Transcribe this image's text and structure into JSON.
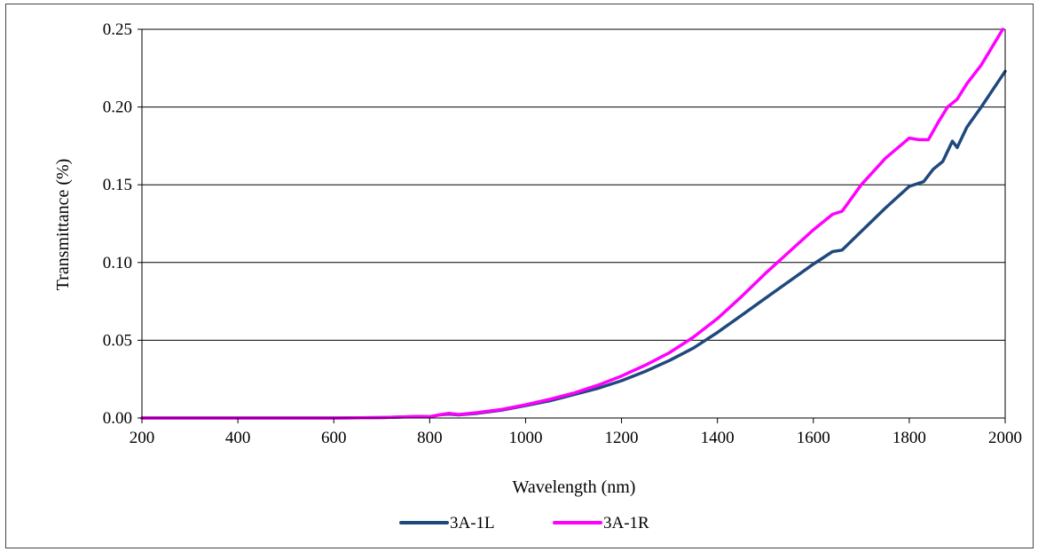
{
  "chart_data": {
    "type": "line",
    "title": "",
    "xlabel": "Wavelength (nm)",
    "ylabel": "Transmittance (%)",
    "xlim": [
      200,
      2000
    ],
    "ylim": [
      0,
      0.25
    ],
    "x_ticks": [
      "200",
      "400",
      "600",
      "800",
      "1000",
      "1200",
      "1400",
      "1600",
      "1800",
      "2000"
    ],
    "y_ticks": [
      "0.00",
      "0.05",
      "0.10",
      "0.15",
      "0.20",
      "0.25"
    ],
    "grid": "horizontal",
    "legend_position": "bottom",
    "series": [
      {
        "name": "3A-1L",
        "color": "#1f497d",
        "x": [
          200,
          400,
          600,
          700,
          780,
          800,
          820,
          840,
          860,
          900,
          950,
          1000,
          1050,
          1100,
          1150,
          1200,
          1250,
          1300,
          1350,
          1400,
          1450,
          1500,
          1550,
          1600,
          1640,
          1660,
          1700,
          1750,
          1800,
          1830,
          1850,
          1870,
          1890,
          1900,
          1920,
          1950,
          2000
        ],
        "y": [
          0.0,
          0.0,
          0.0,
          0.0003,
          0.001,
          0.0008,
          0.002,
          0.0025,
          0.002,
          0.003,
          0.005,
          0.008,
          0.011,
          0.015,
          0.019,
          0.024,
          0.03,
          0.037,
          0.045,
          0.055,
          0.066,
          0.077,
          0.088,
          0.099,
          0.107,
          0.108,
          0.12,
          0.135,
          0.149,
          0.152,
          0.16,
          0.165,
          0.178,
          0.174,
          0.187,
          0.2,
          0.223
        ]
      },
      {
        "name": "3A-1R",
        "color": "#ff00ff",
        "x": [
          200,
          400,
          600,
          700,
          780,
          800,
          820,
          840,
          860,
          900,
          950,
          1000,
          1050,
          1100,
          1150,
          1200,
          1250,
          1300,
          1350,
          1400,
          1450,
          1500,
          1550,
          1600,
          1640,
          1660,
          1700,
          1750,
          1800,
          1820,
          1840,
          1860,
          1880,
          1900,
          1920,
          1950,
          1995
        ],
        "y": [
          0.0,
          0.0,
          0.0,
          0.0003,
          0.001,
          0.0008,
          0.002,
          0.003,
          0.0022,
          0.0035,
          0.0055,
          0.0085,
          0.012,
          0.016,
          0.021,
          0.027,
          0.034,
          0.042,
          0.052,
          0.064,
          0.078,
          0.093,
          0.107,
          0.121,
          0.131,
          0.133,
          0.15,
          0.167,
          0.18,
          0.179,
          0.179,
          0.19,
          0.2,
          0.205,
          0.215,
          0.227,
          0.25
        ]
      }
    ]
  }
}
